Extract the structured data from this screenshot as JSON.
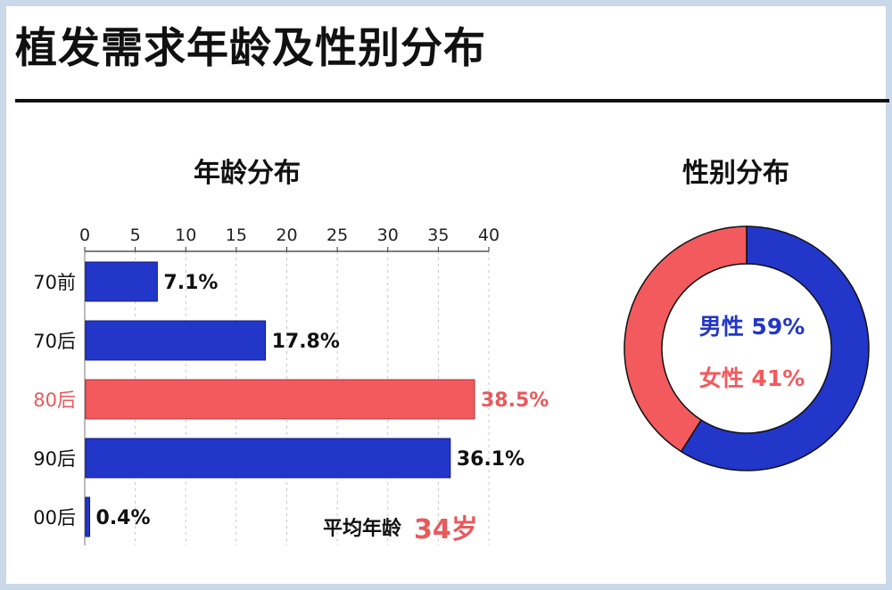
{
  "page": {
    "title": "植发需求年龄及性别分布"
  },
  "colors": {
    "blue": "#2236c9",
    "red": "#f25a5e",
    "highlight_text": "#e8595c",
    "text": "#111111",
    "grid": "#c8c8c8"
  },
  "chart_data": [
    {
      "type": "bar",
      "orientation": "horizontal",
      "title": "年龄分布",
      "categories": [
        "70前",
        "70后",
        "80后",
        "90后",
        "00后"
      ],
      "values": [
        7.1,
        17.8,
        38.5,
        36.1,
        0.4
      ],
      "value_labels": [
        "7.1%",
        "17.8%",
        "38.5%",
        "36.1%",
        "0.4%"
      ],
      "highlight_category": "80后",
      "xlim": [
        0,
        40
      ],
      "xticks": [
        0,
        5,
        10,
        15,
        20,
        25,
        30,
        35,
        40
      ],
      "x_axis_position": "top",
      "grid": "vertical dashed",
      "annotation": {
        "label": "平均年龄",
        "value": "34岁"
      }
    },
    {
      "type": "pie",
      "style": "donut",
      "title": "性别分布",
      "slices": [
        {
          "label": "男性",
          "value": 59,
          "text": "男性 59%",
          "color": "#2236c9"
        },
        {
          "label": "女性",
          "value": 41,
          "text": "女性 41%",
          "color": "#f25a5e"
        }
      ]
    }
  ]
}
